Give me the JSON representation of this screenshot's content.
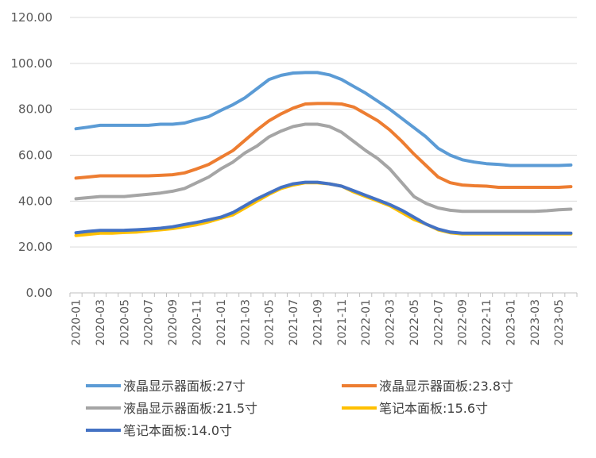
{
  "chart_data": {
    "type": "line",
    "title": "",
    "xlabel": "",
    "ylabel": "",
    "ylim": [
      0,
      120
    ],
    "yticks": [
      "0.00",
      "20.00",
      "40.00",
      "60.00",
      "80.00",
      "100.00",
      "120.00"
    ],
    "x": [
      "2020-01",
      "2020-02",
      "2020-03",
      "2020-04",
      "2020-05",
      "2020-06",
      "2020-07",
      "2020-08",
      "2020-09",
      "2020-10",
      "2020-11",
      "2020-12",
      "2021-01",
      "2021-02",
      "2021-03",
      "2021-04",
      "2021-05",
      "2021-06",
      "2021-07",
      "2021-08",
      "2021-09",
      "2021-10",
      "2021-11",
      "2021-12",
      "2022-01",
      "2022-02",
      "2022-03",
      "2022-04",
      "2022-05",
      "2022-06",
      "2022-07",
      "2022-08",
      "2022-09",
      "2022-10",
      "2022-11",
      "2022-12",
      "2023-01",
      "2023-02",
      "2023-03",
      "2023-04",
      "2023-05",
      "2023-06"
    ],
    "xtick_labels": [
      "2020-01",
      "2020-03",
      "2020-05",
      "2020-07",
      "2020-09",
      "2020-11",
      "2021-01",
      "2021-03",
      "2021-05",
      "2021-07",
      "2021-09",
      "2021-11",
      "2022-01",
      "2022-03",
      "2022-05",
      "2022-07",
      "2022-09",
      "2022-11",
      "2023-01",
      "2023-03",
      "2023-05"
    ],
    "grid": "horizontal",
    "legend_position": "bottom",
    "series": [
      {
        "name": "液晶显示器面板:27寸",
        "color": "#5B9BD5",
        "values": [
          71.5,
          72.2,
          73,
          73,
          73,
          73,
          73,
          73.5,
          73.5,
          74,
          75.5,
          76.8,
          79.5,
          82,
          85,
          89,
          93,
          94.8,
          95.8,
          96,
          96,
          95,
          93,
          90,
          87,
          83.5,
          80,
          76,
          72,
          68,
          63,
          60,
          58,
          57,
          56.3,
          56,
          55.5,
          55.5,
          55.5,
          55.5,
          55.5,
          55.7
        ]
      },
      {
        "name": "液晶显示器面板:23.8寸",
        "color": "#ED7D31",
        "values": [
          50,
          50.5,
          51,
          51,
          51,
          51,
          51,
          51.2,
          51.5,
          52.3,
          54,
          56,
          59,
          62,
          66.5,
          71,
          75,
          78,
          80.5,
          82.3,
          82.5,
          82.5,
          82.3,
          81,
          78,
          75,
          71,
          66,
          60.5,
          55.5,
          50.5,
          48,
          47,
          46.7,
          46.5,
          46,
          46,
          46,
          46,
          46,
          46,
          46.3
        ]
      },
      {
        "name": "液晶显示器面板:21.5寸",
        "color": "#A5A5A5",
        "values": [
          41,
          41.5,
          42,
          42,
          42,
          42.5,
          43,
          43.5,
          44.3,
          45.5,
          48,
          50.5,
          54,
          57,
          61,
          64,
          68,
          70.5,
          72.5,
          73.5,
          73.5,
          72.5,
          70,
          66,
          62,
          58.5,
          54,
          48,
          42,
          39,
          37,
          36,
          35.5,
          35.5,
          35.5,
          35.5,
          35.5,
          35.5,
          35.5,
          35.8,
          36.2,
          36.5
        ]
      },
      {
        "name": "笔记本面板:15.6寸",
        "color": "#FFC000",
        "values": [
          25,
          25.5,
          26,
          26,
          26.3,
          26.5,
          27,
          27.5,
          28,
          28.8,
          29.7,
          31,
          32.5,
          34,
          37,
          40,
          43,
          45.5,
          47,
          48,
          48,
          47.5,
          46.5,
          44,
          42,
          40,
          38,
          35,
          32,
          30,
          27.5,
          26.2,
          25.7,
          25.7,
          25.7,
          25.7,
          25.7,
          25.7,
          25.7,
          25.7,
          25.7,
          25.7
        ]
      },
      {
        "name": "笔记本面板:14.0寸",
        "color": "#4472C4",
        "values": [
          26.2,
          26.8,
          27.2,
          27.2,
          27.3,
          27.5,
          27.8,
          28.2,
          28.8,
          29.8,
          30.7,
          31.8,
          33,
          35,
          38,
          41,
          43.5,
          46,
          47.5,
          48.2,
          48.2,
          47.5,
          46.5,
          44.5,
          42.5,
          40.5,
          38.5,
          36,
          33,
          30,
          27.8,
          26.5,
          26,
          26,
          26,
          26,
          26,
          26,
          26,
          26,
          26,
          26
        ]
      }
    ]
  }
}
